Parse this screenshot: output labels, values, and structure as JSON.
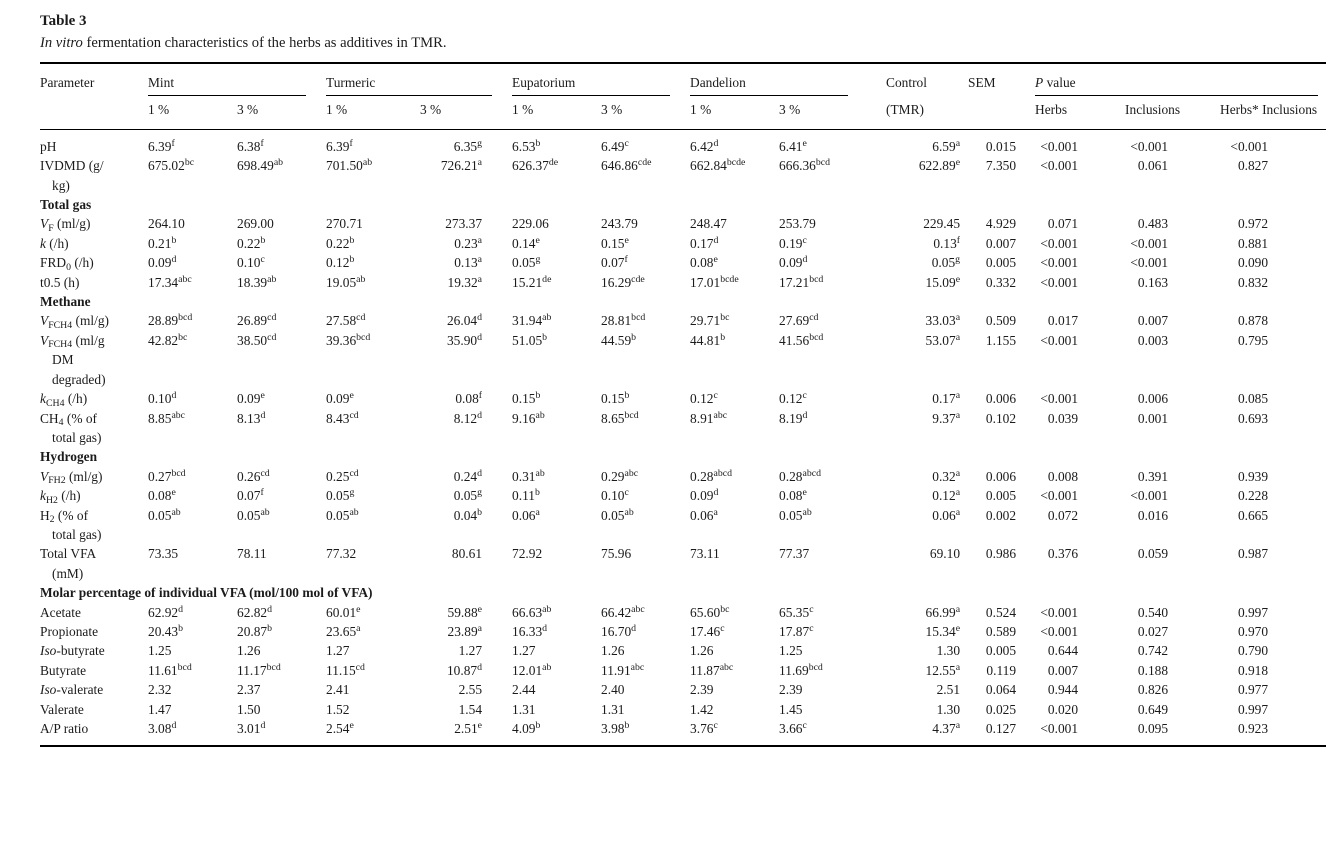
{
  "caption": {
    "label": "Table 3",
    "title": "*In vitro* fermentation characteristics of the herbs as additives in TMR."
  },
  "table": {
    "param_header": "Parameter",
    "groups": [
      {
        "label": "Mint",
        "sub": [
          "1 %",
          "3 %"
        ]
      },
      {
        "label": "Turmeric",
        "sub": [
          "1 %",
          "3 %"
        ]
      },
      {
        "label": "Eupatorium",
        "sub": [
          "1 %",
          "3 %"
        ]
      },
      {
        "label": "Dandelion",
        "sub": [
          "1 %",
          "3 %"
        ]
      }
    ],
    "control_header": [
      "Control",
      "(TMR)"
    ],
    "sem_header": "SEM",
    "pvalue": {
      "label": "*P* value",
      "sub": [
        "Herbs",
        "Inclusions",
        "Herbs* Inclusions"
      ]
    },
    "rows": [
      {
        "label": "pH",
        "cells": [
          "6.39^f",
          "6.38^f",
          "6.39^f",
          "6.35^g",
          "6.53^b",
          "6.49^c",
          "6.42^d",
          "6.41^e",
          "6.59^a",
          "0.015",
          "<0.001",
          "<0.001",
          "<0.001"
        ]
      },
      {
        "label": "IVDMD (g/\nkg)",
        "cells": [
          "675.02^bc",
          "698.49^ab",
          "701.50^ab",
          "726.21^a",
          "626.37^de",
          "646.86^cde",
          "662.84^bcde",
          "666.36^bcd",
          "622.89^e",
          "7.350",
          "<0.001",
          "0.061",
          "0.827"
        ]
      },
      {
        "section": "Total gas"
      },
      {
        "label": "*V*~F~ (ml/g)",
        "cells": [
          "264.10",
          "269.00",
          "270.71",
          "273.37",
          "229.06",
          "243.79",
          "248.47",
          "253.79",
          "229.45",
          "4.929",
          "0.071",
          "0.483",
          "0.972"
        ]
      },
      {
        "label": "*k* (/h)",
        "cells": [
          "0.21^b",
          "0.22^b",
          "0.22^b",
          "0.23^a",
          "0.14^e",
          "0.15^e",
          "0.17^d",
          "0.19^c",
          "0.13^f",
          "0.007",
          "<0.001",
          "<0.001",
          "0.881"
        ]
      },
      {
        "label": "FRD~0~ (/h)",
        "cells": [
          "0.09^d",
          "0.10^c",
          "0.12^b",
          "0.13^a",
          "0.05^g",
          "0.07^f",
          "0.08^e",
          "0.09^d",
          "0.05^g",
          "0.005",
          "<0.001",
          "<0.001",
          "0.090"
        ]
      },
      {
        "label": "t0.5 (h)",
        "cells": [
          "17.34^abc",
          "18.39^ab",
          "19.05^ab",
          "19.32^a",
          "15.21^de",
          "16.29^cde",
          "17.01^bcde",
          "17.21^bcd",
          "15.09^e",
          "0.332",
          "<0.001",
          "0.163",
          "0.832"
        ]
      },
      {
        "section": "Methane"
      },
      {
        "label": "*V*~FCH4~ (ml/g)",
        "cells": [
          "28.89^bcd",
          "26.89^cd",
          "27.58^cd",
          "26.04^d",
          "31.94^ab",
          "28.81^bcd",
          "29.71^bc",
          "27.69^cd",
          "33.03^a",
          "0.509",
          "0.017",
          "0.007",
          "0.878"
        ]
      },
      {
        "label": "*V*~FCH4~ (ml/g\nDM\ndegraded)",
        "cells": [
          "42.82^bc",
          "38.50^cd",
          "39.36^bcd",
          "35.90^d",
          "51.05^b",
          "44.59^b",
          "44.81^b",
          "41.56^bcd",
          "53.07^a",
          "1.155",
          "<0.001",
          "0.003",
          "0.795"
        ]
      },
      {
        "label": "*k*~CH4~ (/h)",
        "cells": [
          "0.10^d",
          "0.09^e",
          "0.09^e",
          "0.08^f",
          "0.15^b",
          "0.15^b",
          "0.12^c",
          "0.12^c",
          "0.17^a",
          "0.006",
          "<0.001",
          "0.006",
          "0.085"
        ]
      },
      {
        "label": "CH~4~ (% of\ntotal gas)",
        "cells": [
          "8.85^abc",
          "8.13^d",
          "8.43^cd",
          "8.12^d",
          "9.16^ab",
          "8.65^bcd",
          "8.91^abc",
          "8.19^d",
          "9.37^a",
          "0.102",
          "0.039",
          "0.001",
          "0.693"
        ]
      },
      {
        "section": "Hydrogen"
      },
      {
        "label": "*V*~FH2~ (ml/g)",
        "cells": [
          "0.27^bcd",
          "0.26^cd",
          "0.25^cd",
          "0.24^d",
          "0.31^ab",
          "0.29^abc",
          "0.28^abcd",
          "0.28^abcd",
          "0.32^a",
          "0.006",
          "0.008",
          "0.391",
          "0.939"
        ]
      },
      {
        "label": "*k*~H2~ (/h)",
        "cells": [
          "0.08^e",
          "0.07^f",
          "0.05^g",
          "0.05^g",
          "0.11^b",
          "0.10^c",
          "0.09^d",
          "0.08^e",
          "0.12^a",
          "0.005",
          "<0.001",
          "<0.001",
          "0.228"
        ]
      },
      {
        "label": "H~2~ (% of\ntotal gas)",
        "cells": [
          "0.05^ab",
          "0.05^ab",
          "0.05^ab",
          "0.04^b",
          "0.06^a",
          "0.05^ab",
          "0.06^a",
          "0.05^ab",
          "0.06^a",
          "0.002",
          "0.072",
          "0.016",
          "0.665"
        ]
      },
      {
        "label": "Total VFA\n(mM)",
        "cells": [
          "73.35",
          "78.11",
          "77.32",
          "80.61",
          "72.92",
          "75.96",
          "73.11",
          "77.37",
          "69.10",
          "0.986",
          "0.376",
          "0.059",
          "0.987"
        ]
      },
      {
        "section": "Molar percentage of individual VFA (mol/100 mol of VFA)"
      },
      {
        "label": "Acetate",
        "cells": [
          "62.92^d",
          "62.82^d",
          "60.01^e",
          "59.88^e",
          "66.63^ab",
          "66.42^abc",
          "65.60^bc",
          "65.35^c",
          "66.99^a",
          "0.524",
          "<0.001",
          "0.540",
          "0.997"
        ]
      },
      {
        "label": "Propionate",
        "cells": [
          "20.43^b",
          "20.87^b",
          "23.65^a",
          "23.89^a",
          "16.33^d",
          "16.70^d",
          "17.46^c",
          "17.87^c",
          "15.34^e",
          "0.589",
          "<0.001",
          "0.027",
          "0.970"
        ]
      },
      {
        "label": "*Iso*-butyrate",
        "cells": [
          "1.25",
          "1.26",
          "1.27",
          "1.27",
          "1.27",
          "1.26",
          "1.26",
          "1.25",
          "1.30",
          "0.005",
          "0.644",
          "0.742",
          "0.790"
        ]
      },
      {
        "label": "Butyrate",
        "cells": [
          "11.61^bcd",
          "11.17^bcd",
          "11.15^cd",
          "10.87^d",
          "12.01^ab",
          "11.91^abc",
          "11.87^abc",
          "11.69^bcd",
          "12.55^a",
          "0.119",
          "0.007",
          "0.188",
          "0.918"
        ]
      },
      {
        "label": "*Iso*-valerate",
        "cells": [
          "2.32",
          "2.37",
          "2.41",
          "2.55",
          "2.44",
          "2.40",
          "2.39",
          "2.39",
          "2.51",
          "0.064",
          "0.944",
          "0.826",
          "0.977"
        ]
      },
      {
        "label": "Valerate",
        "cells": [
          "1.47",
          "1.50",
          "1.52",
          "1.54",
          "1.31",
          "1.31",
          "1.42",
          "1.45",
          "1.30",
          "0.025",
          "0.020",
          "0.649",
          "0.997"
        ]
      },
      {
        "label": "A/P ratio",
        "cells": [
          "3.08^d",
          "3.01^d",
          "2.54^e",
          "2.51^e",
          "4.09^b",
          "3.98^b",
          "3.76^c",
          "3.66^c",
          "4.37^a",
          "0.127",
          "<0.001",
          "0.095",
          "0.923"
        ]
      }
    ]
  }
}
